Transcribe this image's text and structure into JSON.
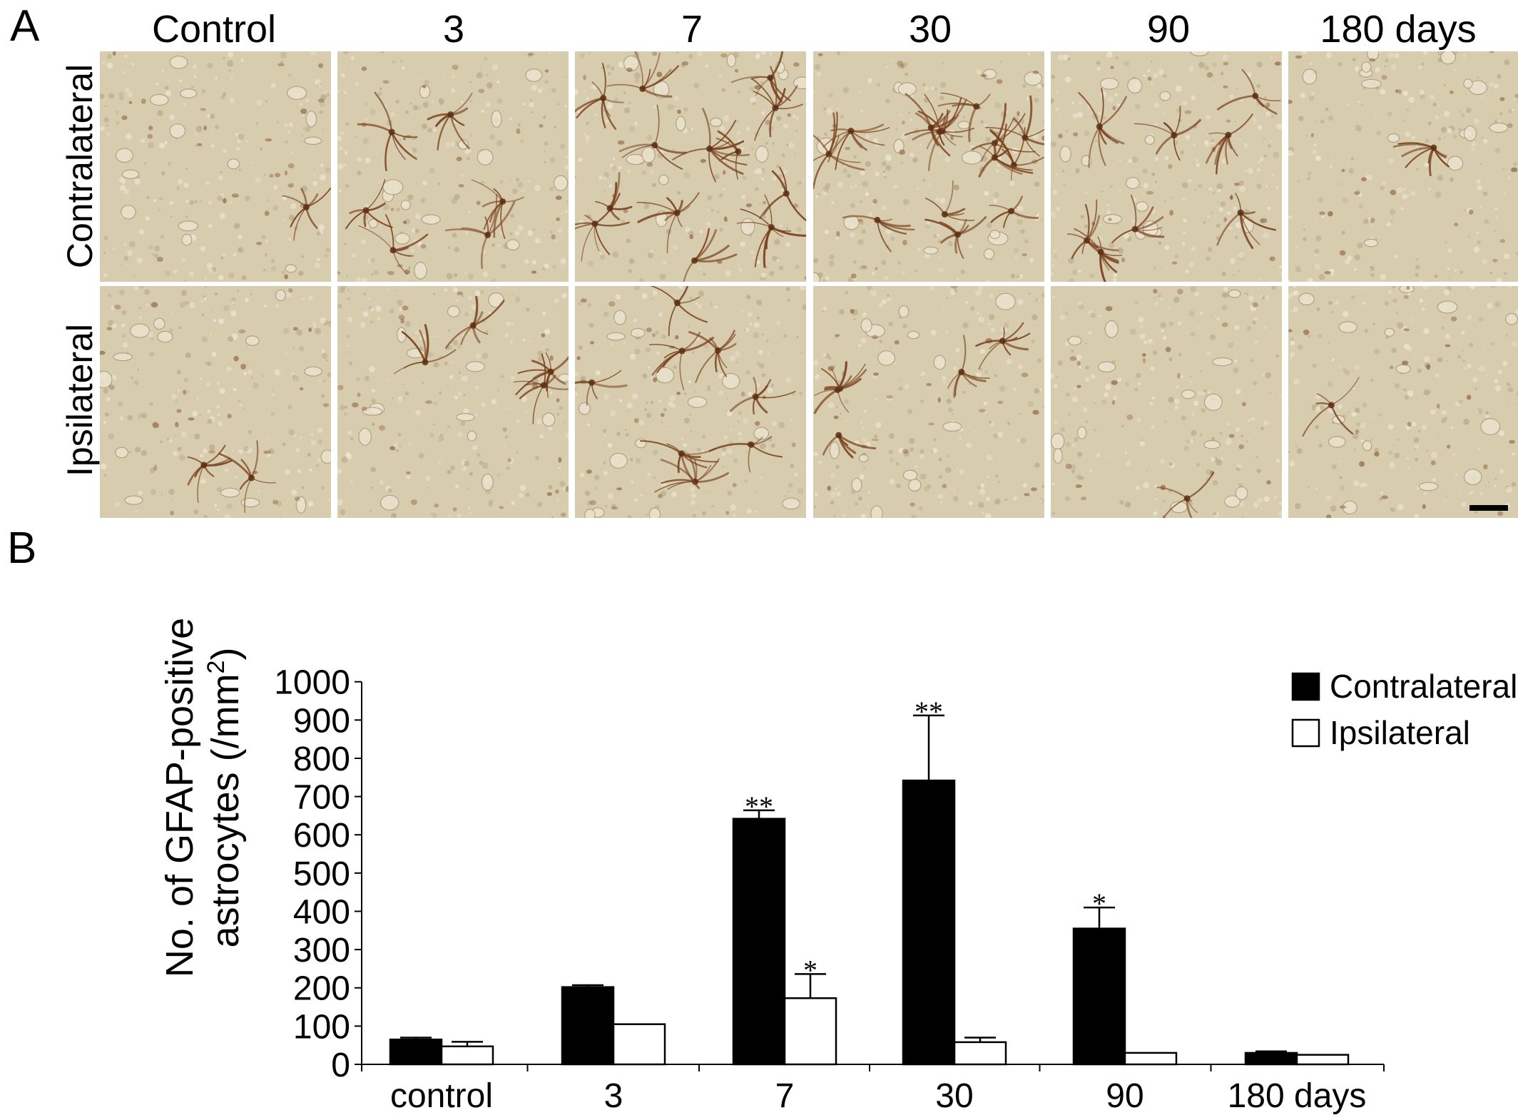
{
  "panel_a": {
    "letter": "A",
    "columns": [
      "Control",
      "3",
      "7",
      "30",
      "90",
      "180 days"
    ],
    "rows": [
      "Contralateral",
      "Ipsilateral"
    ],
    "tile_colors": {
      "background": "#d8ccae",
      "stain": "#7a4320"
    },
    "stain_level": [
      [
        0.1,
        0.45,
        0.95,
        1.0,
        0.6,
        0.05
      ],
      [
        0.15,
        0.3,
        0.55,
        0.35,
        0.05,
        0.05
      ]
    ]
  },
  "panel_b": {
    "letter": "B",
    "ylabel_line1": "No. of GFAP-positive",
    "ylabel_line2": "astrocytes",
    "ylabel_unit_pre": "(/mm",
    "ylabel_unit_sup": "2",
    "ylabel_unit_post": ")"
  },
  "chart_data": {
    "type": "bar",
    "categories": [
      "control",
      "3",
      "7",
      "30",
      "90",
      "180 days"
    ],
    "ylim": [
      0,
      1000
    ],
    "yticks": [
      0,
      100,
      200,
      300,
      400,
      500,
      600,
      700,
      800,
      900,
      1000
    ],
    "legend_position": "right",
    "series": [
      {
        "name": "Contralateral",
        "color": "#000000",
        "values": [
          65,
          202,
          642,
          742,
          355,
          30
        ],
        "errors": [
          5,
          5,
          22,
          170,
          55,
          4
        ],
        "significance": [
          "",
          "",
          "**",
          "**",
          "*",
          ""
        ]
      },
      {
        "name": "Ipsilateral",
        "color": "#ffffff",
        "values": [
          47,
          105,
          173,
          58,
          30,
          25
        ],
        "errors": [
          12,
          0,
          63,
          12,
          0,
          0
        ],
        "significance": [
          "",
          "",
          "*",
          "",
          "",
          ""
        ]
      }
    ]
  }
}
